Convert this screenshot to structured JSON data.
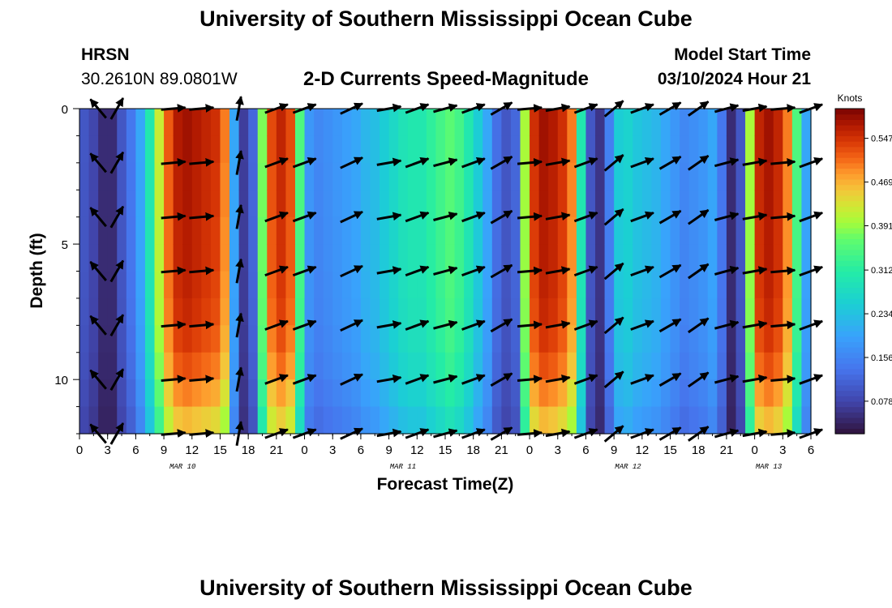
{
  "header": {
    "title": "University of Southern Mississippi Ocean Cube",
    "station": "HRSN",
    "coords": "30.2610N  89.0801W",
    "plot_title": "2-D Currents Speed-Magnitude",
    "model_start_label": "Model Start Time",
    "model_start_value": "03/10/2024 Hour 21"
  },
  "footer": {
    "title": "University of Southern Mississippi Ocean Cube"
  },
  "chart_data": {
    "type": "heatmap",
    "title": "2-D Currents Speed-Magnitude",
    "xlabel": "Forecast Time(Z)",
    "ylabel": "Depth (ft)",
    "x_unit": "hours since Mar 10 00Z",
    "xlim": [
      0,
      78
    ],
    "ylim": [
      0,
      12
    ],
    "y_inverted": true,
    "x_tick_values": [
      0,
      3,
      6,
      9,
      12,
      15,
      18,
      21,
      24,
      27,
      30,
      33,
      36,
      39,
      42,
      45,
      48,
      51,
      54,
      57,
      60,
      63,
      66,
      69,
      72,
      75,
      78
    ],
    "x_tick_labels": [
      "0",
      "3",
      "6",
      "9",
      "12",
      "15",
      "18",
      "21",
      "0",
      "3",
      "6",
      "9",
      "12",
      "15",
      "18",
      "21",
      "0",
      "3",
      "6",
      "9",
      "12",
      "15",
      "18",
      "21",
      "0",
      "3",
      "6"
    ],
    "y_tick_values": [
      0,
      5,
      10
    ],
    "y_tick_labels": [
      "0",
      "5",
      "10"
    ],
    "date_labels": [
      {
        "x": 11,
        "text": "MAR 10"
      },
      {
        "x": 34.5,
        "text": "MAR 11"
      },
      {
        "x": 58.5,
        "text": "MAR 12"
      },
      {
        "x": 73.5,
        "text": "MAR 13"
      }
    ],
    "colorbar": {
      "label": "Knots",
      "range": [
        0.02,
        0.6
      ],
      "tick_values": [
        0.078,
        0.156,
        0.234,
        0.312,
        0.391,
        0.469,
        0.547
      ],
      "tick_labels": [
        "0.078",
        "0.156",
        "0.234",
        "0.312",
        "0.391",
        "0.469",
        "0.547"
      ]
    },
    "speed_profile": {
      "hours": [
        0,
        1,
        2,
        3,
        4,
        5,
        6,
        7,
        8,
        9,
        10,
        11,
        12,
        13,
        14,
        15,
        16,
        17,
        18,
        19,
        20,
        21,
        22,
        23,
        24,
        25,
        26,
        27,
        28,
        29,
        30,
        31,
        32,
        33,
        34,
        35,
        36,
        37,
        38,
        39,
        40,
        41,
        42,
        43,
        44,
        45,
        46,
        47,
        48,
        49,
        50,
        51,
        52,
        53,
        54,
        55,
        56,
        57,
        58,
        59,
        60,
        61,
        62,
        63,
        64,
        65,
        66,
        67,
        68,
        69,
        70,
        71,
        72,
        73,
        74,
        75,
        76,
        77
      ],
      "speed_knots": [
        0.1,
        0.08,
        0.05,
        0.05,
        0.1,
        0.14,
        0.2,
        0.3,
        0.42,
        0.52,
        0.57,
        0.58,
        0.57,
        0.56,
        0.55,
        0.5,
        0.2,
        0.07,
        0.12,
        0.38,
        0.53,
        0.56,
        0.53,
        0.35,
        0.18,
        0.16,
        0.17,
        0.18,
        0.19,
        0.2,
        0.22,
        0.23,
        0.25,
        0.27,
        0.29,
        0.3,
        0.3,
        0.32,
        0.34,
        0.36,
        0.34,
        0.3,
        0.25,
        0.2,
        0.13,
        0.1,
        0.12,
        0.4,
        0.55,
        0.58,
        0.57,
        0.55,
        0.5,
        0.3,
        0.1,
        0.06,
        0.15,
        0.25,
        0.26,
        0.24,
        0.23,
        0.22,
        0.2,
        0.18,
        0.16,
        0.17,
        0.18,
        0.2,
        0.14,
        0.05,
        0.1,
        0.4,
        0.56,
        0.58,
        0.56,
        0.5,
        0.35,
        0.2
      ]
    },
    "depth_factor": {
      "depths_ft": [
        0,
        1,
        2,
        3,
        4,
        5,
        6,
        7,
        8,
        9,
        10,
        11
      ],
      "factor": [
        1.0,
        1.0,
        0.99,
        0.99,
        0.98,
        0.98,
        0.97,
        0.96,
        0.94,
        0.91,
        0.86,
        0.8
      ]
    },
    "vectors": {
      "hours": [
        2,
        4,
        10,
        13,
        17,
        21,
        24,
        29,
        33,
        36,
        39,
        42,
        45,
        48,
        51,
        54,
        57,
        60,
        63,
        66,
        69,
        72,
        75,
        78
      ],
      "depths_ft": [
        0,
        2,
        4,
        6,
        8,
        10,
        12
      ],
      "direction_deg": [
        130,
        60,
        5,
        5,
        80,
        20,
        20,
        25,
        10,
        20,
        15,
        20,
        30,
        5,
        10,
        20,
        40,
        20,
        30,
        35,
        15,
        10,
        5,
        20
      ]
    }
  }
}
